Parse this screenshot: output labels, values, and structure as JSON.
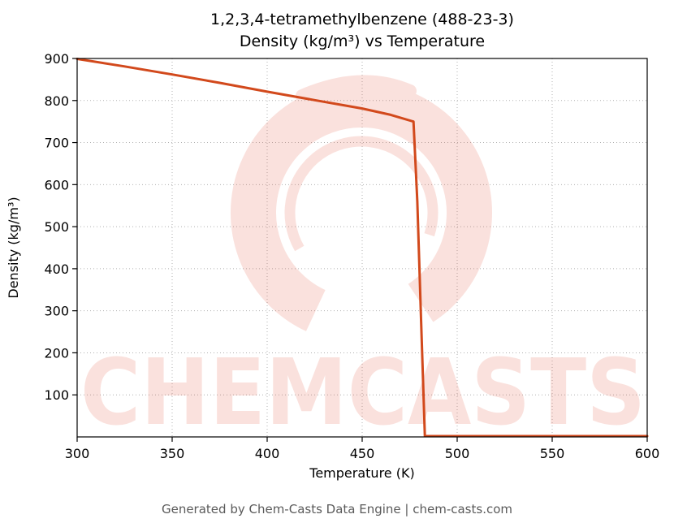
{
  "title": {
    "line1": "1,2,3,4-tetramethylbenzene (488-23-3)",
    "line2": "Density (kg/m³) vs Temperature"
  },
  "chart_data": {
    "type": "line",
    "title": "1,2,3,4-tetramethylbenzene (488-23-3) — Density (kg/m³) vs Temperature",
    "xlabel": "Temperature (K)",
    "ylabel": "Density (kg/m³)",
    "xlim": [
      300,
      600
    ],
    "ylim": [
      0,
      900
    ],
    "xticks": [
      300,
      350,
      400,
      450,
      500,
      550,
      600
    ],
    "yticks": [
      100,
      200,
      300,
      400,
      500,
      600,
      700,
      800,
      900
    ],
    "grid": true,
    "legend": "none",
    "line_color": "#d2491c",
    "series": [
      {
        "name": "density",
        "points": [
          [
            300,
            899
          ],
          [
            325,
            881
          ],
          [
            350,
            862
          ],
          [
            375,
            842
          ],
          [
            400,
            821
          ],
          [
            425,
            801
          ],
          [
            450,
            781
          ],
          [
            465,
            766
          ],
          [
            477,
            750
          ],
          [
            479,
            560
          ],
          [
            481,
            280
          ],
          [
            483,
            2
          ],
          [
            500,
            2
          ],
          [
            550,
            2
          ],
          [
            600,
            2
          ]
        ]
      }
    ]
  },
  "watermark": {
    "text": "CHEMCASTS",
    "color": "#e2543a"
  },
  "footer": {
    "text": "Generated by Chem-Casts Data Engine | chem-casts.com"
  }
}
